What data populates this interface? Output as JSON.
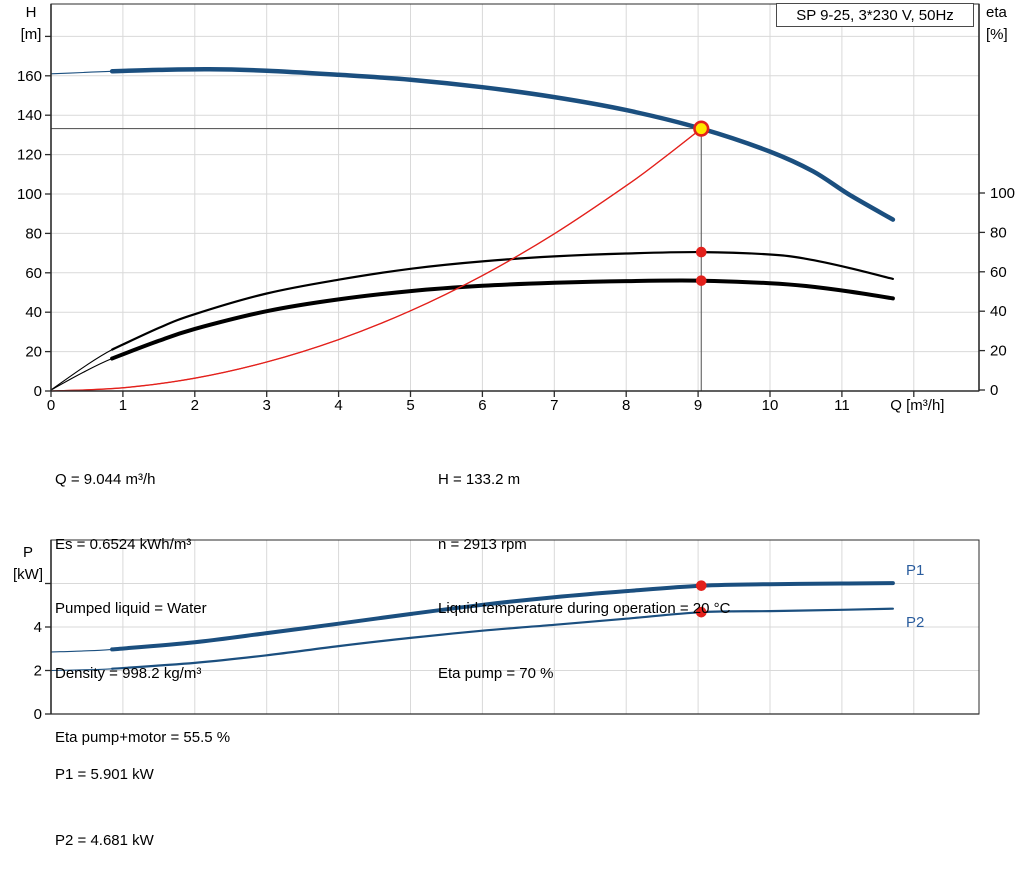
{
  "report": {
    "product": "SP 9-25, 3*230 V, 50Hz"
  },
  "colors": {
    "curve_blue": "#1b4f7f",
    "label_blue": "#2b5d9e",
    "red": "#e3211c",
    "marker_yellow": "#ffe800",
    "grid": "#d9d9d9",
    "axis": "#2b2b2b",
    "ref_line": "#5f5f5f",
    "text": "#000000"
  },
  "annotations": {
    "left": [
      "Q = 9.044 m³/h",
      "Es = 0.6524 kWh/m³",
      "Pumped liquid = Water",
      "Density = 998.2 kg/m³",
      "Eta pump+motor = 55.5 %"
    ],
    "right": [
      "H = 133.2 m",
      "n = 2913 rpm",
      "Liquid temperature during operation = 20 °C",
      "Eta pump = 70 %"
    ],
    "power": [
      "P1 = 5.901 kW",
      "P2 = 4.681 kW"
    ]
  },
  "chart_data": [
    {
      "id": "hq-eta-chart",
      "type": "line",
      "title": "SP 9-25, 3*230 V, 50Hz",
      "x_axis": {
        "label": "Q [m³/h]",
        "ticks": [
          0,
          1,
          2,
          3,
          4,
          5,
          6,
          7,
          8,
          9,
          10,
          11
        ],
        "grid_ticks": [
          1,
          2,
          3,
          4,
          5,
          6,
          7,
          8,
          9,
          10,
          11,
          12
        ],
        "range": [
          0,
          12.9
        ]
      },
      "y_left": {
        "label_lines": [
          "H",
          "[m]"
        ],
        "ticks": [
          0,
          20,
          40,
          60,
          80,
          100,
          120,
          140,
          160
        ],
        "grid_ticks": [
          20,
          40,
          60,
          80,
          100,
          120,
          140,
          160,
          180
        ],
        "range": [
          0,
          196
        ]
      },
      "y_right": {
        "label_lines": [
          "eta",
          "[%]"
        ],
        "ticks": [
          0,
          20,
          40,
          60,
          80,
          100
        ],
        "range": [
          0,
          197
        ]
      },
      "grid": true,
      "duty_point": {
        "q": 9.044,
        "h": 133.2
      },
      "duty_dots": [
        {
          "name": "duty-eta-pump-dot",
          "q": 9.044,
          "value": 70,
          "axis": "right"
        },
        {
          "name": "duty-eta-pump-motor-dot",
          "q": 9.044,
          "value": 55.5,
          "axis": "right"
        }
      ],
      "series": [
        {
          "name": "eta-pump-curve",
          "label": "Eta pump",
          "axis": "right",
          "color": "#000000",
          "width": 2.2,
          "thin_until": 0.85,
          "points": [
            [
              0,
              0
            ],
            [
              0.45,
              11.5
            ],
            [
              0.85,
              20.5
            ],
            [
              1.5,
              31.5
            ],
            [
              2,
              38.5
            ],
            [
              3,
              49
            ],
            [
              4,
              56
            ],
            [
              5,
              61.5
            ],
            [
              6,
              65.3
            ],
            [
              7,
              67.8
            ],
            [
              8,
              69.3
            ],
            [
              9.044,
              70
            ],
            [
              10,
              68.8
            ],
            [
              10.5,
              66.6
            ],
            [
              11.1,
              62
            ],
            [
              11.71,
              56.4
            ]
          ]
        },
        {
          "name": "eta-pump-motor-curve",
          "label": "Eta pump+motor",
          "axis": "right",
          "color": "#000000",
          "width": 4,
          "thin_until": 0.85,
          "points": [
            [
              0,
              0
            ],
            [
              0.45,
              9
            ],
            [
              0.85,
              16
            ],
            [
              1.5,
              25
            ],
            [
              2,
              31
            ],
            [
              3,
              40
            ],
            [
              4,
              46
            ],
            [
              5,
              50.2
            ],
            [
              6,
              52.9
            ],
            [
              7,
              54.4
            ],
            [
              8,
              55.3
            ],
            [
              9.044,
              55.5
            ],
            [
              10,
              54.2
            ],
            [
              10.5,
              52.8
            ],
            [
              11.1,
              50
            ],
            [
              11.71,
              46.5
            ]
          ]
        },
        {
          "name": "system-curve",
          "label": "System curve",
          "axis": "left",
          "color": "#e3211c",
          "width": 1.3,
          "points": [
            [
              0,
              0
            ],
            [
              1,
              1.6
            ],
            [
              2,
              6.5
            ],
            [
              3,
              14.7
            ],
            [
              4,
              26.1
            ],
            [
              5,
              40.7
            ],
            [
              6,
              58.6
            ],
            [
              7,
              79.8
            ],
            [
              8,
              104.2
            ],
            [
              8.5,
              117.7
            ],
            [
              9.044,
              133.2
            ]
          ]
        },
        {
          "name": "pump-curve-H",
          "label": "H",
          "axis": "left",
          "color": "#1b4f7f",
          "width": 4.5,
          "thin_until": 0.85,
          "points": [
            [
              0,
              161
            ],
            [
              0.45,
              161.7
            ],
            [
              0.85,
              162.3
            ],
            [
              1.5,
              163
            ],
            [
              2.2,
              163.3
            ],
            [
              3,
              162.6
            ],
            [
              4,
              160.5
            ],
            [
              5,
              158
            ],
            [
              6,
              154.2
            ],
            [
              7,
              149.2
            ],
            [
              8,
              142.6
            ],
            [
              9.044,
              133.2
            ],
            [
              10,
              121.5
            ],
            [
              10.6,
              111.5
            ],
            [
              11.1,
              99.7
            ],
            [
              11.71,
              87
            ]
          ]
        }
      ]
    },
    {
      "id": "power-chart",
      "type": "line",
      "x_axis": {
        "label": "",
        "ticks": [],
        "grid_ticks": [
          1,
          2,
          3,
          4,
          5,
          6,
          7,
          8,
          9,
          10,
          11,
          12
        ],
        "range": [
          0,
          12.9
        ]
      },
      "y_left": {
        "label_lines": [
          "P",
          "[kW]"
        ],
        "ticks": [
          0,
          2,
          4
        ],
        "grid_ticks": [
          2,
          4,
          6
        ],
        "tick_marks": [
          0,
          2,
          4,
          6
        ],
        "range": [
          0,
          8
        ]
      },
      "grid": true,
      "duty_dots": [
        {
          "name": "p1-duty-dot",
          "q": 9.044,
          "value": 5.901
        },
        {
          "name": "p2-duty-dot",
          "q": 9.044,
          "value": 4.681
        }
      ],
      "series": [
        {
          "name": "p1-curve",
          "label": "P1",
          "color": "#1b4f7f",
          "width": 4,
          "thin_until": 0.85,
          "points": [
            [
              0,
              2.85
            ],
            [
              0.45,
              2.9
            ],
            [
              0.85,
              2.97
            ],
            [
              2,
              3.3
            ],
            [
              3,
              3.72
            ],
            [
              4,
              4.15
            ],
            [
              5,
              4.6
            ],
            [
              6,
              5.02
            ],
            [
              7,
              5.37
            ],
            [
              8,
              5.65
            ],
            [
              9.044,
              5.901
            ],
            [
              10,
              5.97
            ],
            [
              11,
              6.0
            ],
            [
              11.71,
              6.02
            ]
          ]
        },
        {
          "name": "p2-curve",
          "label": "P2",
          "color": "#1b4f7f",
          "width": 2.2,
          "thin_until": 0.85,
          "points": [
            [
              0,
              2.0
            ],
            [
              0.45,
              2.03
            ],
            [
              0.85,
              2.08
            ],
            [
              2,
              2.35
            ],
            [
              3,
              2.7
            ],
            [
              4,
              3.12
            ],
            [
              5,
              3.5
            ],
            [
              6,
              3.83
            ],
            [
              7,
              4.1
            ],
            [
              8,
              4.38
            ],
            [
              9.044,
              4.681
            ],
            [
              10,
              4.73
            ],
            [
              11,
              4.79
            ],
            [
              11.71,
              4.84
            ]
          ]
        }
      ]
    }
  ]
}
